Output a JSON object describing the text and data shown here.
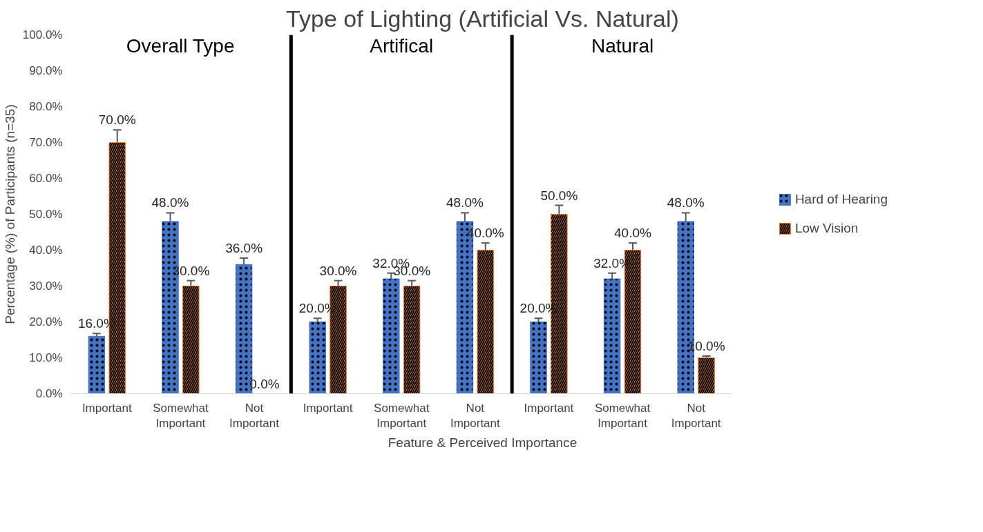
{
  "chart_data": {
    "type": "bar",
    "title": "Type of Lighting (Artificial Vs. Natural)",
    "xlabel": "Feature & Perceived Importance",
    "ylabel": "Percentage (%) of Participants (n=35)",
    "categories": [
      "Important",
      "Somewhat Important",
      "Not Important",
      "Important",
      "Somewhat Important",
      "Not Important",
      "Important",
      "Somewhat Important",
      "Not Important"
    ],
    "series": [
      {
        "name": "Hard of Hearing",
        "color": "#4472c4",
        "values": [
          16,
          48,
          36,
          20,
          32,
          48,
          20,
          32,
          48
        ],
        "errors": [
          0.8,
          2.4,
          1.8,
          1,
          1.6,
          2.4,
          1,
          1.6,
          2.4
        ],
        "value_labels": [
          "16.0%",
          "48.0%",
          "36.0%",
          "20.0%",
          "32.0%",
          "48.0%",
          "20.0%",
          "32.0%",
          "48.0%"
        ]
      },
      {
        "name": "Low Vision",
        "color": "#ed7d31",
        "values": [
          70,
          30,
          0,
          30,
          30,
          40,
          50,
          40,
          10
        ],
        "errors": [
          3.5,
          1.5,
          null,
          1.5,
          1.5,
          2,
          2.5,
          2,
          0.5
        ],
        "value_labels": [
          "70.0%",
          "30.0%",
          "0.0%",
          "30.0%",
          "30.0%",
          "40.0%",
          "50.0%",
          "40.0%",
          "10.0%"
        ]
      }
    ],
    "annotations": [
      "Overall Type",
      "Artifical",
      "Natural"
    ],
    "ylim": [
      0,
      100
    ],
    "yticks": [
      {
        "value": 0,
        "label": "0.0%"
      },
      {
        "value": 10,
        "label": "10.0%"
      },
      {
        "value": 20,
        "label": "20.0%"
      },
      {
        "value": 30,
        "label": "30.0%"
      },
      {
        "value": 40,
        "label": "40.0%"
      },
      {
        "value": 50,
        "label": "50.0%"
      },
      {
        "value": 60,
        "label": "60.0%"
      },
      {
        "value": 70,
        "label": "70.0%"
      },
      {
        "value": 80,
        "label": "80.0%"
      },
      {
        "value": 90,
        "label": "90.0%"
      },
      {
        "value": 100,
        "label": "100.0%"
      }
    ],
    "grid": false,
    "legend": "right"
  }
}
